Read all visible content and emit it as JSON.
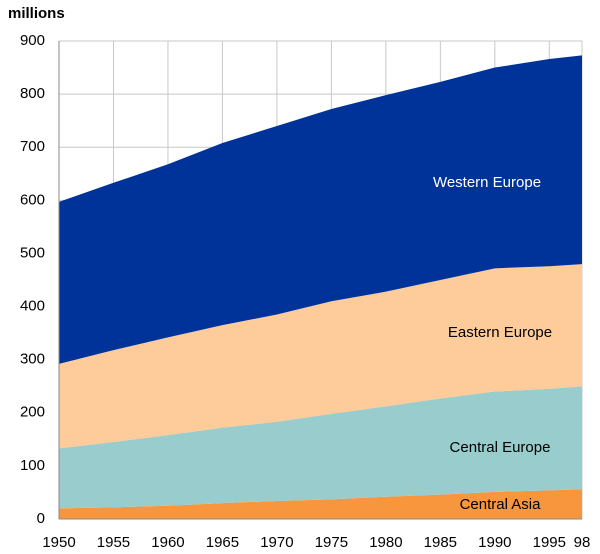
{
  "chart_data": {
    "type": "stacked-area",
    "ylabel": "millions",
    "x": [
      1950,
      1955,
      1960,
      1965,
      1970,
      1975,
      1980,
      1985,
      1990,
      1995,
      1998
    ],
    "series": [
      {
        "name": "Central Asia",
        "color": "#f7963c",
        "values": [
          20,
          22,
          25,
          30,
          34,
          37,
          42,
          46,
          51,
          54,
          56
        ]
      },
      {
        "name": "Central Europe",
        "color": "#99cccc",
        "values": [
          113,
          123,
          133,
          142,
          149,
          161,
          170,
          181,
          189,
          191,
          194
        ]
      },
      {
        "name": "Eastern Europe",
        "color": "#fdcc9a",
        "values": [
          159,
          173,
          184,
          193,
          202,
          212,
          216,
          223,
          232,
          231,
          230
        ]
      },
      {
        "name": "Western Europe",
        "color": "#003399",
        "values": [
          305,
          315,
          326,
          343,
          355,
          362,
          370,
          373,
          378,
          390,
          393
        ]
      }
    ],
    "xlim": [
      1950,
      1998
    ],
    "xticks": [
      1950,
      1955,
      1960,
      1965,
      1970,
      1975,
      1980,
      1985,
      1990,
      1995,
      {
        "value": 1998,
        "label": "98"
      }
    ],
    "ylim": [
      0,
      900
    ],
    "yticks": [
      0,
      100,
      200,
      300,
      400,
      500,
      600,
      700,
      800,
      900
    ],
    "grid": true
  }
}
